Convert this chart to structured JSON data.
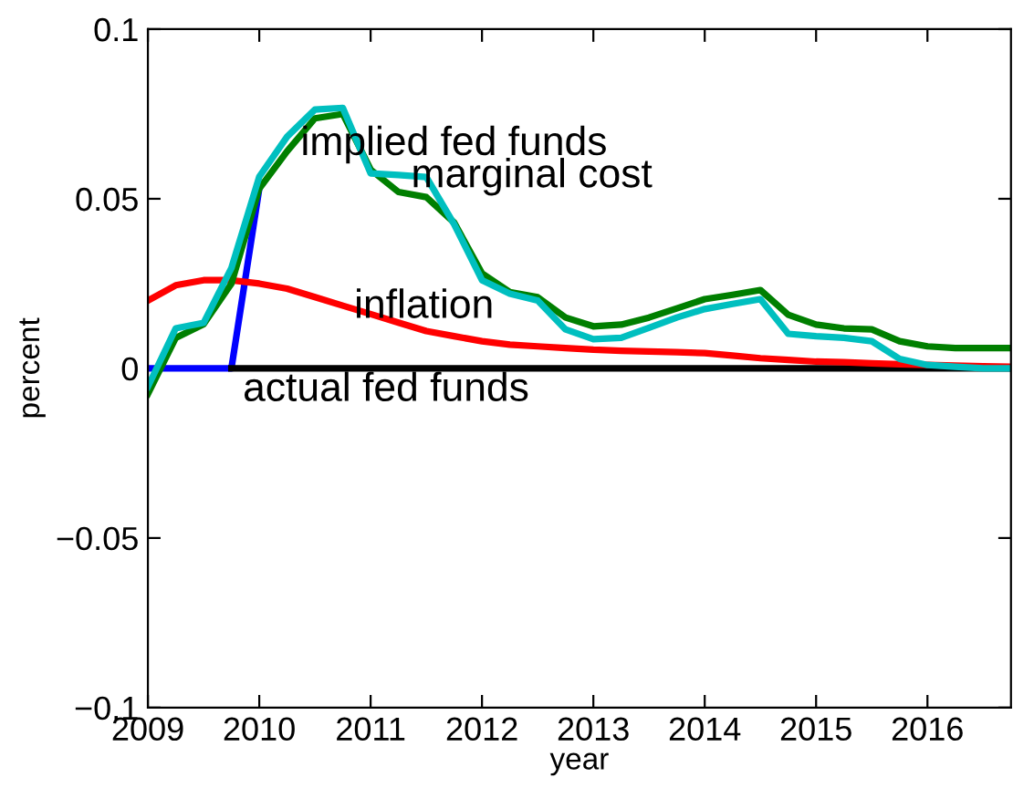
{
  "chart_data": {
    "type": "line",
    "xlabel": "year",
    "ylabel": "percent",
    "x": [
      2009,
      2009.25,
      2009.5,
      2009.75,
      2010,
      2010.25,
      2010.5,
      2010.75,
      2011,
      2011.25,
      2011.5,
      2011.75,
      2012,
      2012.25,
      2012.5,
      2012.75,
      2013,
      2013.25,
      2013.5,
      2013.75,
      2014,
      2014.25,
      2014.5,
      2014.75,
      2015,
      2015.25,
      2015.5,
      2015.75,
      2016,
      2016.25,
      2016.5,
      2016.75
    ],
    "series": [
      {
        "color": "#0000ff",
        "values": [
          0,
          0,
          0,
          0,
          0.053,
          null,
          null,
          null,
          null,
          null,
          null,
          null,
          null,
          null,
          null,
          null,
          null,
          null,
          null,
          null,
          null,
          null,
          null,
          null,
          null,
          null,
          null,
          null,
          null,
          null,
          null,
          null
        ]
      },
      {
        "color": "#000000",
        "x": [
          2009.75,
          2016.75
        ],
        "values": [
          0,
          0
        ]
      },
      {
        "color": "#ff0000",
        "values": [
          0.02,
          0.0245,
          0.026,
          0.026,
          0.025,
          0.0235,
          0.021,
          0.0185,
          0.016,
          0.0135,
          0.011,
          0.0095,
          0.008,
          0.007,
          0.0065,
          0.006,
          0.0055,
          0.0052,
          0.005,
          0.0048,
          0.0045,
          0.0038,
          0.003,
          0.0025,
          0.002,
          0.0018,
          0.0015,
          0.0012,
          0.001,
          0.0008,
          0.0006,
          0.0005
        ]
      },
      {
        "color": "#007f00",
        "values": [
          -0.0075,
          0.009,
          0.013,
          0.025,
          0.053,
          0.064,
          0.0737,
          0.075,
          0.0586,
          0.052,
          0.0505,
          0.043,
          0.028,
          0.0225,
          0.021,
          0.015,
          0.0124,
          0.0129,
          0.015,
          0.0177,
          0.0204,
          0.0217,
          0.0231,
          0.0158,
          0.0129,
          0.0118,
          0.0115,
          0.008,
          0.0065,
          0.006,
          0.006,
          0.006
        ]
      },
      {
        "color": "#00bfbf",
        "values": [
          -0.0054,
          0.0118,
          0.0134,
          0.0296,
          0.0565,
          0.0683,
          0.0763,
          0.0768,
          0.0575,
          0.057,
          0.0564,
          0.0425,
          0.026,
          0.022,
          0.02,
          0.0115,
          0.0086,
          0.009,
          0.012,
          0.015,
          0.0175,
          0.019,
          0.0204,
          0.0102,
          0.0095,
          0.009,
          0.008,
          0.0028,
          0.001,
          0.0005,
          0,
          0
        ]
      }
    ],
    "annotations": [
      "implied fed funds",
      "marginal cost",
      "inflation",
      "actual fed funds"
    ],
    "xlim": [
      2009,
      2016.75
    ],
    "xticks": [
      2009,
      2010,
      2011,
      2012,
      2013,
      2014,
      2015,
      2016
    ],
    "ylim": [
      -0.1,
      0.1
    ],
    "yticks": [
      {
        "value": -0.1,
        "label": "−0.1"
      },
      {
        "value": -0.05,
        "label": "−0.05"
      },
      0,
      0.05,
      0.1
    ],
    "grid": false,
    "legend": false,
    "marker": "none",
    "line_style": "solid"
  }
}
